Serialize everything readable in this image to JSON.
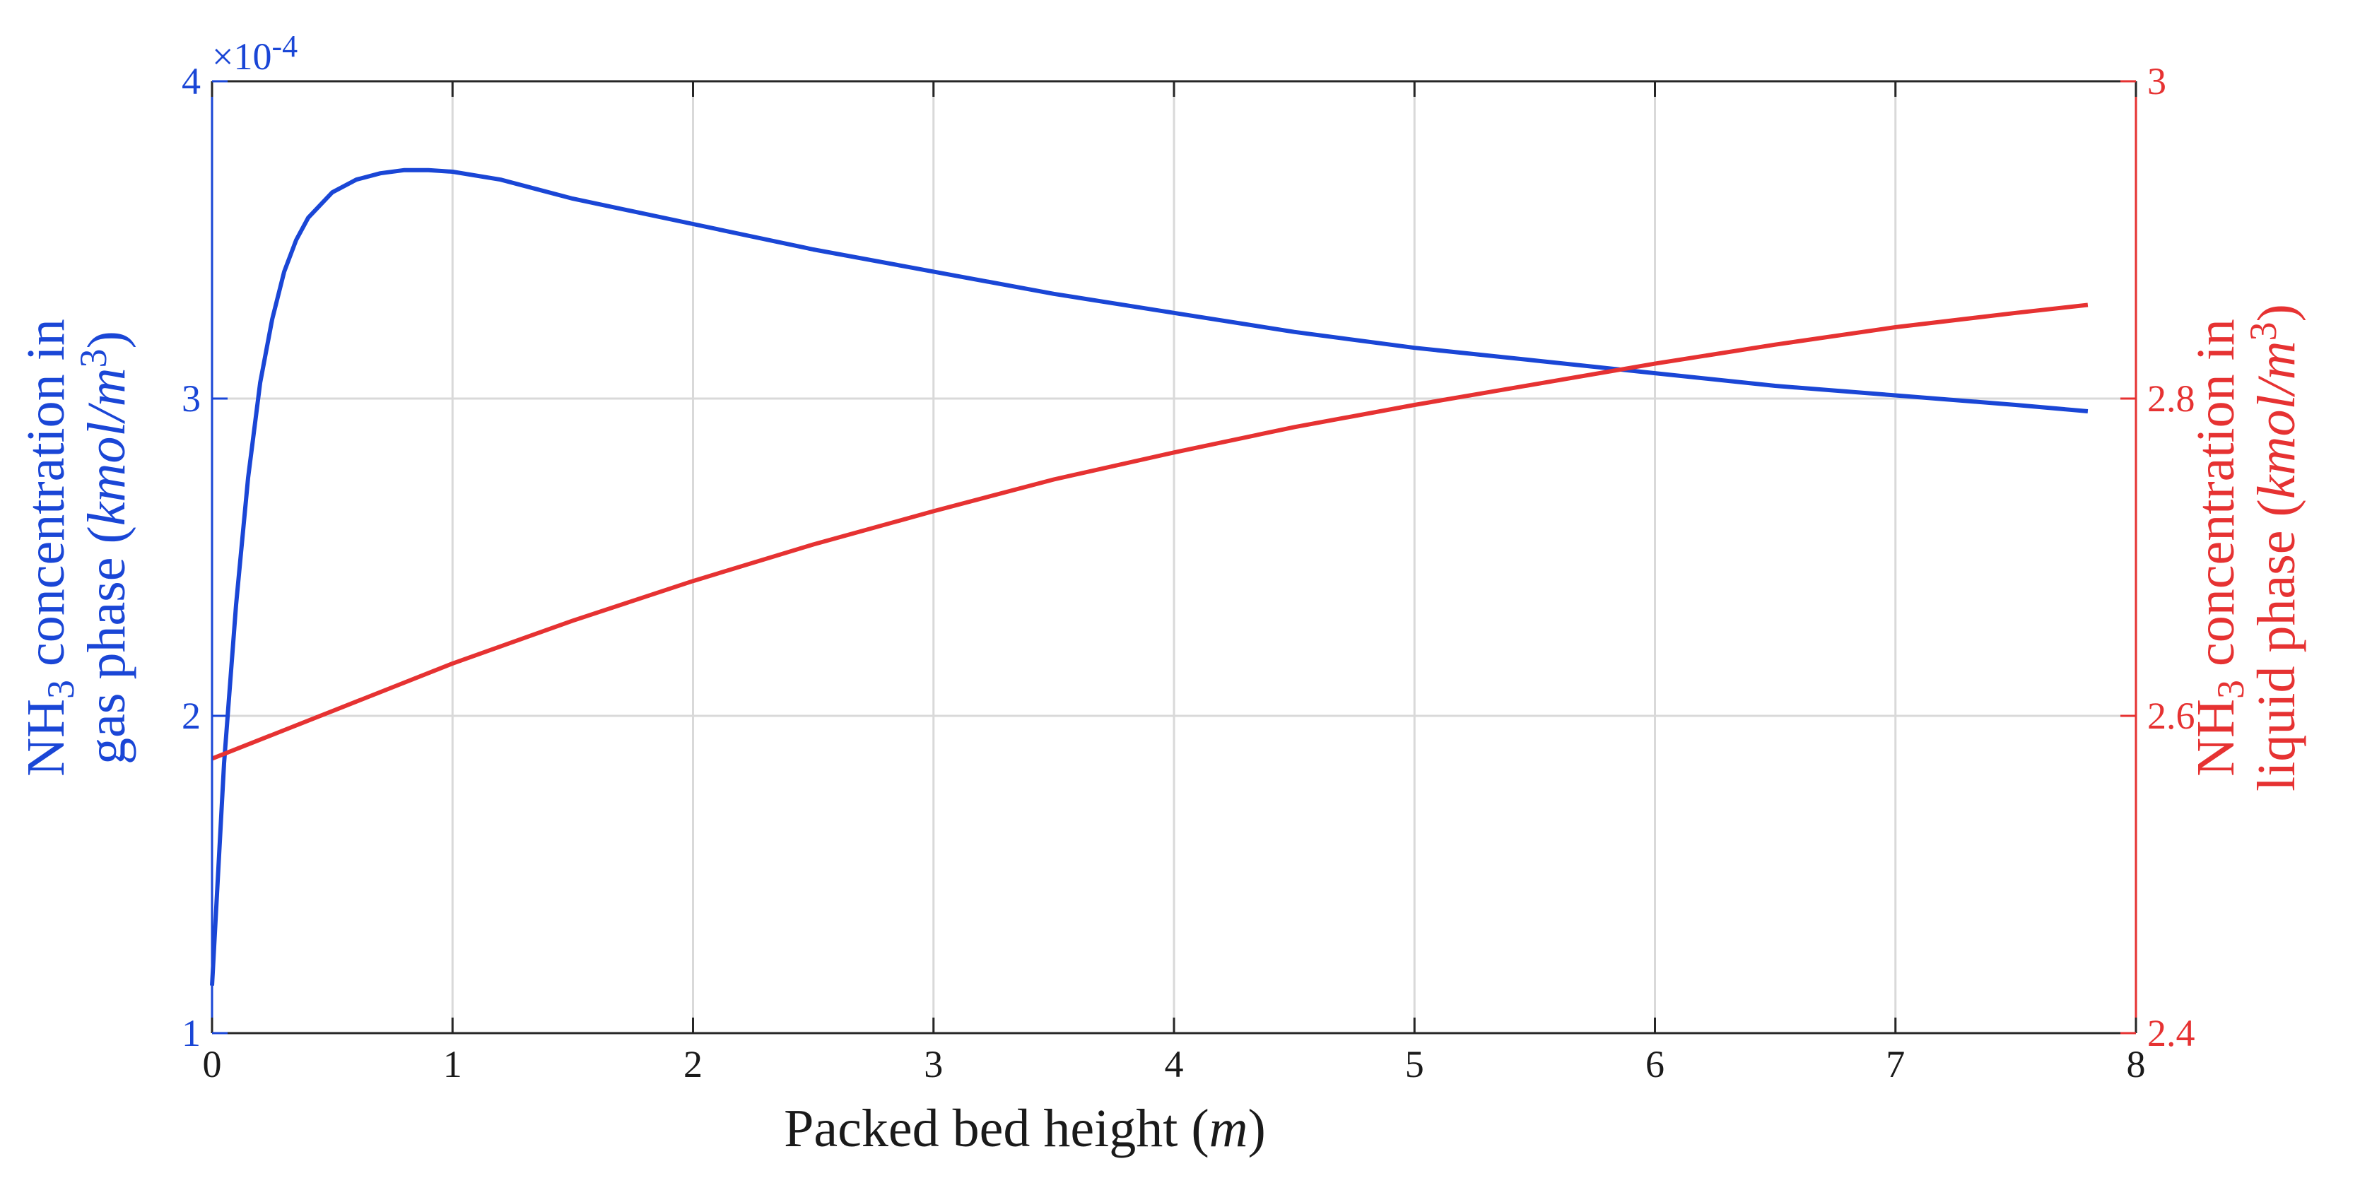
{
  "colors": {
    "left": "#1a46d6",
    "right": "#e63232",
    "grid": "#d9d9d9",
    "axis": "#262626"
  },
  "chart_data": {
    "type": "line",
    "xlabel": "Packed bed height (m)",
    "xlabel_parts": {
      "text": "Packed bed height (",
      "var": "m",
      "close": ")"
    },
    "xlim": [
      0,
      8
    ],
    "xticks": [
      0,
      1,
      2,
      3,
      4,
      5,
      6,
      7,
      8
    ],
    "grid": true,
    "y_left": {
      "ylim": [
        1.0,
        4.0
      ],
      "yticks": [
        1,
        2,
        3,
        4
      ],
      "multiplier": "×10",
      "multiplier_exp": "-4",
      "label_line1": {
        "pre": "NH",
        "sub": "3",
        "post": " concentration in"
      },
      "label_line2": {
        "pre": "gas phase (",
        "var": "kmol/m",
        "sup": "3",
        "post": ")"
      }
    },
    "y_right": {
      "ylim": [
        2.4,
        3.0
      ],
      "yticks": [
        "2.4",
        "2.6",
        "2.8",
        "3"
      ],
      "label_line1": {
        "pre": "NH",
        "sub": "3",
        "post": " concentration in"
      },
      "label_line2": {
        "pre": "liquid phase (",
        "var": "kmol/m",
        "sup": "3",
        "post": ")"
      }
    },
    "series": [
      {
        "axis": "left",
        "x": [
          0.0,
          0.05,
          0.1,
          0.15,
          0.2,
          0.25,
          0.3,
          0.35,
          0.4,
          0.5,
          0.6,
          0.7,
          0.8,
          0.9,
          1.0,
          1.2,
          1.5,
          2.0,
          2.5,
          3.0,
          3.5,
          4.0,
          4.5,
          5.0,
          5.5,
          6.0,
          6.5,
          7.0,
          7.5,
          7.8
        ],
        "y": [
          1.15,
          1.85,
          2.35,
          2.75,
          3.05,
          3.25,
          3.4,
          3.5,
          3.57,
          3.65,
          3.69,
          3.71,
          3.72,
          3.72,
          3.715,
          3.69,
          3.63,
          3.55,
          3.47,
          3.4,
          3.33,
          3.27,
          3.21,
          3.16,
          3.12,
          3.08,
          3.04,
          3.01,
          2.98,
          2.96
        ]
      },
      {
        "axis": "right",
        "x": [
          0.0,
          0.5,
          1.0,
          1.5,
          2.0,
          2.5,
          3.0,
          3.5,
          4.0,
          4.5,
          5.0,
          5.5,
          6.0,
          6.5,
          7.0,
          7.5,
          7.8
        ],
        "y": [
          2.573,
          2.603,
          2.633,
          2.66,
          2.685,
          2.708,
          2.729,
          2.749,
          2.766,
          2.782,
          2.796,
          2.809,
          2.822,
          2.834,
          2.845,
          2.854,
          2.859
        ]
      }
    ]
  }
}
